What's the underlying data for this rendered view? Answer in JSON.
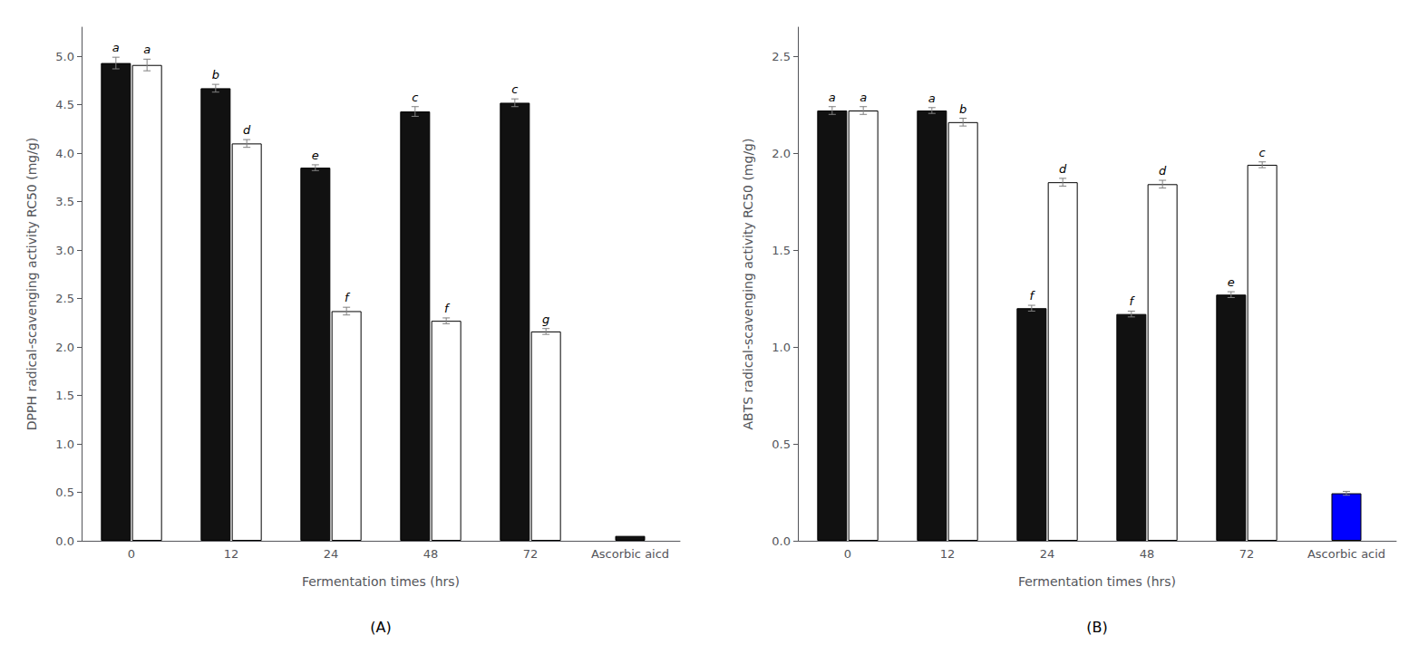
{
  "chart_data": [
    {
      "type": "bar",
      "title": "(A)",
      "xlabel": "Fermentation times (hrs)",
      "ylabel": "DPPH radical-scavenging activity RC50 (mg/g)",
      "categories": [
        "0",
        "12",
        "24",
        "48",
        "72",
        "Ascorbic aicd"
      ],
      "series": [
        {
          "color": "#111111",
          "values": [
            4.93,
            4.67,
            3.85,
            4.43,
            4.52,
            null
          ],
          "errors": [
            0.06,
            0.04,
            0.03,
            0.05,
            0.04,
            null
          ],
          "annotations": [
            "a",
            "b",
            "e",
            "c",
            "c",
            null
          ]
        },
        {
          "color": "#ffffff",
          "values": [
            4.91,
            4.1,
            2.37,
            2.27,
            2.16,
            null
          ],
          "errors": [
            0.06,
            0.04,
            0.04,
            0.03,
            0.03,
            null
          ],
          "annotations": [
            "a",
            "d",
            "f",
            "f",
            "g",
            null
          ]
        },
        {
          "color": "#111111",
          "values": [
            null,
            null,
            null,
            null,
            null,
            0.05
          ]
        }
      ],
      "ylim": [
        0,
        5.3
      ],
      "yticks": [
        {
          "value": 0,
          "label": "0.0"
        },
        0.5,
        {
          "value": 1,
          "label": "1.0"
        },
        1.5,
        {
          "value": 2,
          "label": "2.0"
        },
        2.5,
        {
          "value": 3,
          "label": "3.0"
        },
        3.5,
        {
          "value": 4,
          "label": "4.0"
        },
        4.5,
        {
          "value": 5,
          "label": "5.0"
        }
      ],
      "grid": false
    },
    {
      "type": "bar",
      "title": "(B)",
      "xlabel": "Fermentation times (hrs)",
      "ylabel": "ABTS radical-scavenging activity RC50 (mg/g)",
      "categories": [
        "0",
        "12",
        "24",
        "48",
        "72",
        "Ascorbic acid"
      ],
      "series": [
        {
          "color": "#111111",
          "values": [
            2.22,
            2.22,
            1.2,
            1.17,
            1.27,
            null
          ],
          "errors": [
            0.02,
            0.015,
            0.015,
            0.015,
            0.015,
            null
          ],
          "annotations": [
            "a",
            "a",
            "f",
            "f",
            "e",
            null
          ]
        },
        {
          "color": "#ffffff",
          "values": [
            2.22,
            2.16,
            1.85,
            1.84,
            1.94,
            null
          ],
          "errors": [
            0.02,
            0.02,
            0.02,
            0.02,
            0.015,
            null
          ],
          "annotations": [
            "a",
            "b",
            "d",
            "d",
            "c",
            null
          ]
        },
        {
          "color": "#0000ff",
          "values": [
            null,
            null,
            null,
            null,
            null,
            0.245
          ],
          "errors": [
            null,
            null,
            null,
            null,
            null,
            0.01
          ]
        }
      ],
      "ylim": [
        0,
        2.65
      ],
      "yticks": [
        {
          "value": 0,
          "label": "0.0"
        },
        0.5,
        {
          "value": 1,
          "label": "1.0"
        },
        1.5,
        {
          "value": 2,
          "label": "2.0"
        },
        2.5
      ],
      "grid": false
    }
  ]
}
